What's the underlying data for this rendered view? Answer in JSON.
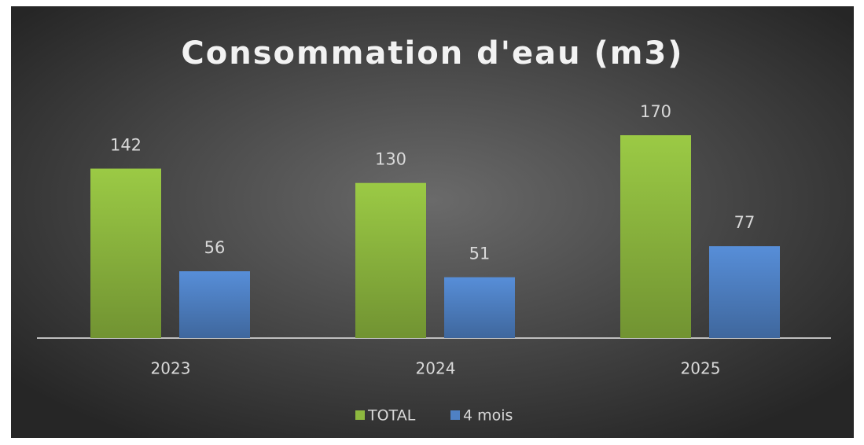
{
  "chart_data": {
    "type": "bar",
    "title": "Consommation d'eau (m3)",
    "categories": [
      "2023",
      "2024",
      "2025"
    ],
    "series": [
      {
        "name": "TOTAL",
        "color": "#8db83f",
        "values": [
          142,
          130,
          170
        ]
      },
      {
        "name": "4 mois",
        "color": "#4f81c4",
        "values": [
          56,
          51,
          77
        ]
      }
    ],
    "legend": "bottom"
  }
}
